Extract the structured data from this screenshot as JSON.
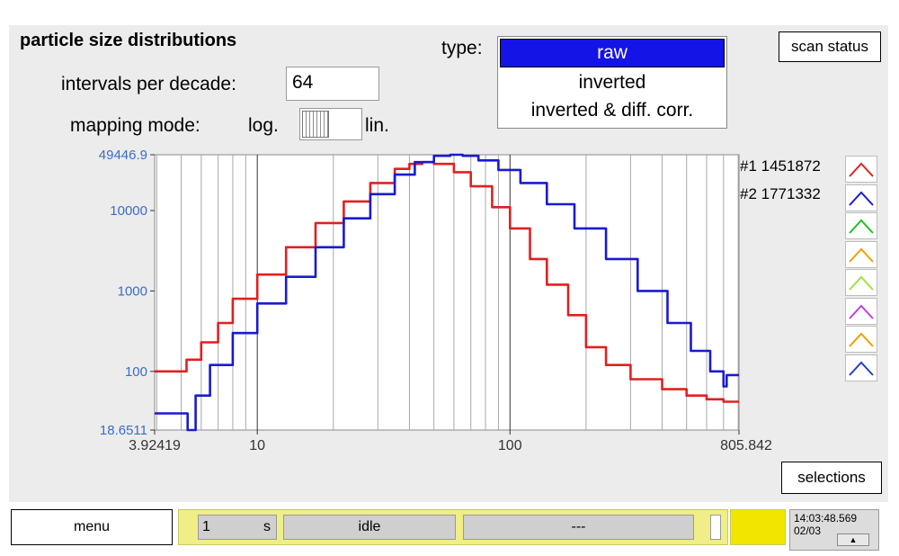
{
  "header": {
    "title": "particle size distributions",
    "intervals_label": "intervals per decade:",
    "intervals_value": "64",
    "mapping_label": "mapping mode:",
    "mapping_left": "log.",
    "mapping_right": "lin.",
    "type_label": "type:",
    "type_options": [
      "raw",
      "inverted",
      "inverted & diff. corr."
    ],
    "type_selected": "raw"
  },
  "buttons": {
    "scan_status": "scan status",
    "selections": "selections",
    "menu": "menu"
  },
  "legend": {
    "entries": [
      {
        "label": "#1 1451872",
        "color": "#e02020"
      },
      {
        "label": "#2 1771332",
        "color": "#1a1ad0"
      }
    ],
    "extra_swatch_colors": [
      "#20c020",
      "#f0a000",
      "#a0e040",
      "#c040e0",
      "#f0a000",
      "#2040d0"
    ]
  },
  "chart_data": {
    "type": "line",
    "x_scale": "log",
    "y_scale": "log",
    "xlim": [
      3.92419,
      805.842
    ],
    "ylim": [
      18.6511,
      49446.9
    ],
    "x_tick_labels": [
      "3.92419",
      "10",
      "100",
      "805.842"
    ],
    "y_tick_labels": [
      "49446.9",
      "10000",
      "1000",
      "100",
      "18.6511"
    ],
    "grid": true,
    "series": [
      {
        "name": "#1 1451872",
        "color": "#e02020",
        "x": [
          3.92419,
          5.2,
          5.25,
          6,
          7,
          8,
          10,
          13,
          17,
          22,
          28,
          35,
          40,
          45,
          50,
          60,
          70,
          85,
          100,
          120,
          140,
          170,
          200,
          240,
          300,
          400,
          500,
          600,
          700,
          805.842
        ],
        "y": [
          100,
          100,
          140,
          230,
          400,
          800,
          1600,
          3500,
          7000,
          13000,
          22000,
          33000,
          38000,
          40000,
          38000,
          30000,
          20000,
          11000,
          6000,
          2500,
          1200,
          500,
          200,
          120,
          80,
          60,
          50,
          45,
          42,
          42
        ]
      },
      {
        "name": "#2 1771332",
        "color": "#1a1ad0",
        "x": [
          3.92419,
          5.0,
          5.3,
          5.7,
          6.5,
          8,
          10,
          13,
          17,
          22,
          28,
          35,
          42,
          50,
          58,
          65,
          75,
          90,
          110,
          140,
          180,
          240,
          320,
          420,
          520,
          620,
          700,
          720,
          805.842
        ],
        "y": [
          30,
          30,
          18.6511,
          50,
          120,
          300,
          700,
          1500,
          3500,
          8000,
          16000,
          28000,
          40000,
          48000,
          49446.9,
          48000,
          42000,
          32000,
          22000,
          12000,
          6000,
          2500,
          1000,
          400,
          180,
          100,
          65,
          90,
          90
        ]
      }
    ]
  },
  "status": {
    "interval_value": "1",
    "interval_unit": "s",
    "state": "idle",
    "message": "---",
    "time": "14:03:48.569",
    "date": "02/03"
  }
}
